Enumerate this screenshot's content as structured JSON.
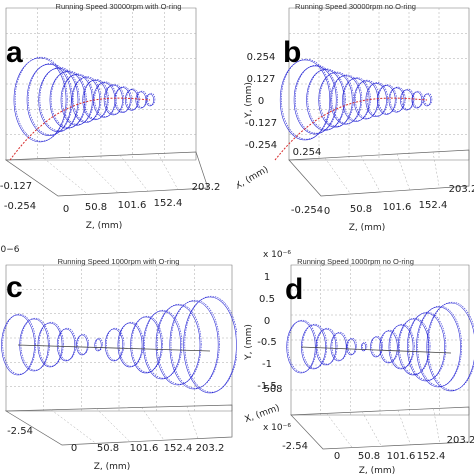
{
  "chart_data": [
    {
      "id": "a",
      "type": "3d-orbit",
      "panel_label": "a",
      "title": "Running Speed 30000rpm with O-ring",
      "z_label": "Z, (mm)",
      "z_ticks": [
        "0",
        "50.8",
        "101.6",
        "152.4",
        "203.2"
      ],
      "x_label": "",
      "x_ticks": [
        "-0.127",
        "-0.254"
      ],
      "y_label": "",
      "y_ticks": [],
      "exponent_label": "",
      "orbit_color": "#2b2bd6",
      "trace_color": "#d62b2b"
    },
    {
      "id": "b",
      "type": "3d-orbit",
      "panel_label": "b",
      "title": "Running Speed 30000rpm no O-ring",
      "z_label": "Z, (mm)",
      "z_ticks": [
        "0",
        "50.8",
        "101.6",
        "152.4",
        "203.2"
      ],
      "x_label": "X, (mm)",
      "x_ticks": [
        "0.254",
        "-0.254"
      ],
      "y_label": "Y, (mm)",
      "y_ticks": [
        "0.254",
        "0.127",
        "0",
        "-0.127",
        "-0.254"
      ],
      "exponent_label": "",
      "orbit_color": "#2b2bd6",
      "trace_color": "#d62b2b"
    },
    {
      "id": "c",
      "type": "3d-orbit",
      "panel_label": "c",
      "title": "Running Speed 1000rpm with O-ring",
      "z_label": "Z, (mm)",
      "z_ticks": [
        "0",
        "50.8",
        "101.6",
        "152.4",
        "203.2"
      ],
      "x_label": "",
      "x_ticks": [
        "-2.54"
      ],
      "y_label": "",
      "y_ticks": [],
      "exponent_label": "0−6",
      "orbit_color": "#2b2bd6",
      "trace_color": "#444444"
    },
    {
      "id": "d",
      "type": "3d-orbit",
      "panel_label": "d",
      "title": "Running Speed 1000rpm no O-ring",
      "z_label": "Z, (mm)",
      "z_ticks": [
        "0",
        "50.8",
        "101.6",
        "152.4",
        "203.2"
      ],
      "x_label": "X, (mm)",
      "x_ticks": [
        "508",
        "-2.54"
      ],
      "y_label": "Y, (mm)",
      "y_ticks": [
        "1",
        "0.5",
        "0",
        "-0.5",
        "-1",
        "-1.5"
      ],
      "exponent_label": "x 10⁻⁶",
      "exponent_label_x": "x 10⁻⁶",
      "orbit_color": "#2b2bd6",
      "trace_color": "#444444"
    }
  ]
}
